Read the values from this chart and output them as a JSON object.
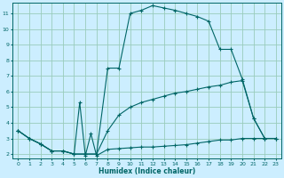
{
  "xlabel": "Humidex (Indice chaleur)",
  "bg_color": "#cceeff",
  "grid_color": "#99ccbb",
  "line_color": "#006666",
  "xlim": [
    -0.5,
    23.5
  ],
  "ylim": [
    1.7,
    11.7
  ],
  "yticks": [
    2,
    3,
    4,
    5,
    6,
    7,
    8,
    9,
    10,
    11
  ],
  "xticks": [
    0,
    1,
    2,
    3,
    4,
    5,
    6,
    7,
    8,
    9,
    10,
    11,
    12,
    13,
    14,
    15,
    16,
    17,
    18,
    19,
    20,
    21,
    22,
    23
  ],
  "line_big_x": [
    0,
    1,
    2,
    3,
    4,
    5,
    6,
    7,
    8,
    9,
    10,
    11,
    12,
    13,
    14,
    15,
    16,
    17,
    18,
    19,
    20,
    21,
    22,
    23
  ],
  "line_big_y": [
    3.5,
    3.0,
    2.65,
    2.2,
    2.2,
    2.0,
    2.0,
    2.0,
    7.5,
    7.5,
    11.0,
    11.2,
    11.5,
    11.35,
    11.2,
    11.0,
    10.8,
    10.5,
    8.7,
    8.7,
    6.8,
    4.3,
    3.0,
    3.0
  ],
  "line_mid_x": [
    0,
    1,
    2,
    3,
    4,
    5,
    6,
    7,
    8,
    9,
    10,
    11,
    12,
    13,
    14,
    15,
    16,
    17,
    18,
    19,
    20,
    21,
    22,
    23
  ],
  "line_mid_y": [
    3.5,
    3.0,
    2.65,
    2.2,
    2.2,
    2.0,
    2.0,
    2.0,
    3.5,
    4.5,
    5.0,
    5.3,
    5.5,
    5.7,
    5.9,
    6.0,
    6.15,
    6.3,
    6.4,
    6.6,
    6.7,
    4.3,
    3.0,
    3.0
  ],
  "line_low_x": [
    0,
    1,
    2,
    3,
    4,
    5,
    5.5,
    6,
    6.5,
    7,
    8,
    9,
    10,
    11,
    12,
    13,
    14,
    15,
    16,
    17,
    18,
    19,
    20,
    21,
    22,
    23
  ],
  "line_low_y": [
    3.5,
    3.0,
    2.65,
    2.2,
    2.2,
    2.0,
    5.3,
    1.9,
    3.3,
    1.9,
    2.3,
    2.35,
    2.4,
    2.45,
    2.45,
    2.5,
    2.55,
    2.6,
    2.7,
    2.8,
    2.9,
    2.9,
    3.0,
    3.0,
    3.0,
    3.0
  ]
}
